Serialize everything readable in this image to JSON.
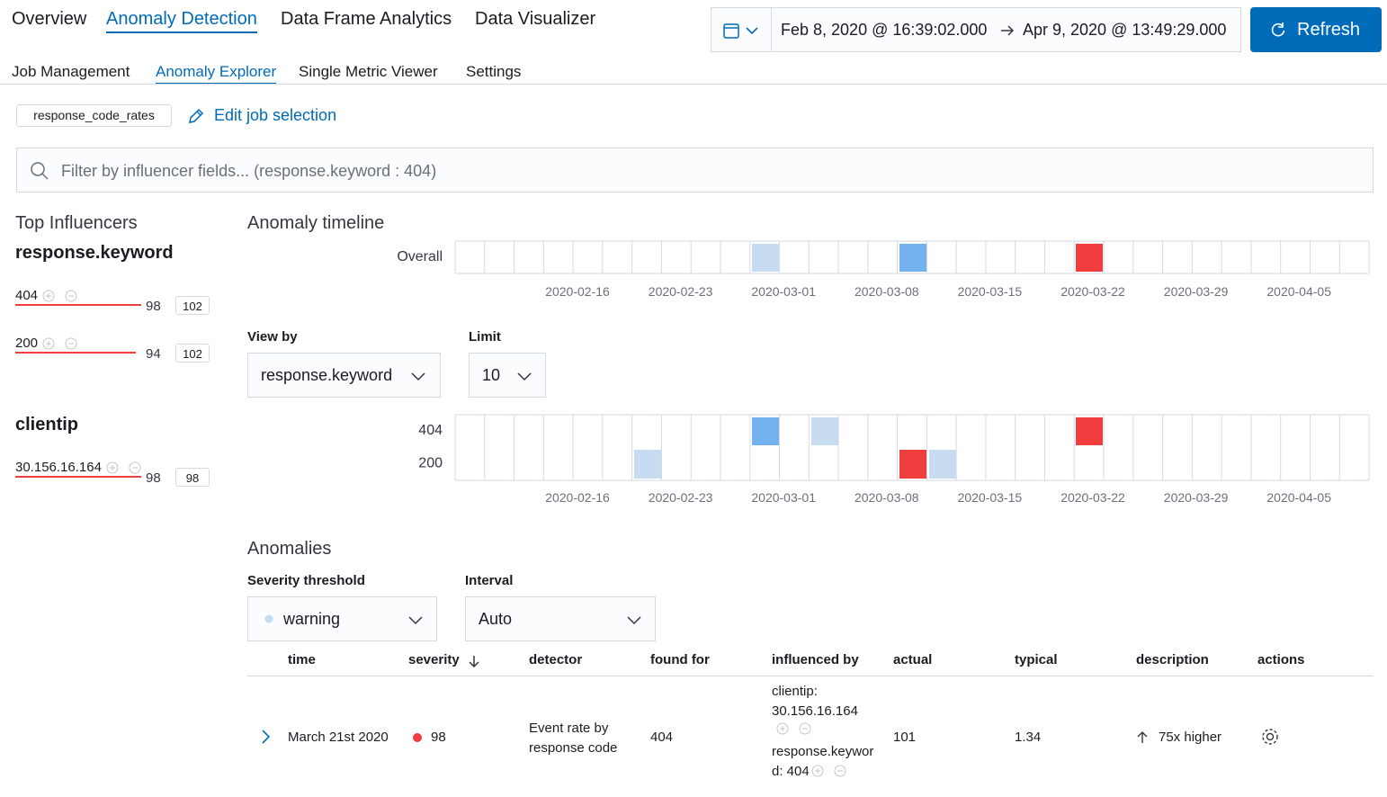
{
  "nav": {
    "tabs": [
      "Overview",
      "Anomaly Detection",
      "Data Frame Analytics",
      "Data Visualizer"
    ],
    "active": 1
  },
  "subnav": {
    "tabs": [
      "Job Management",
      "Anomaly Explorer",
      "Single Metric Viewer",
      "Settings"
    ],
    "active": 1
  },
  "date_picker": {
    "start": "Feb 8, 2020 @ 16:39:02.000",
    "end": "Apr 9, 2020 @ 13:49:29.000"
  },
  "refresh_button": "Refresh",
  "job": {
    "id": "response_code_rates",
    "edit": "Edit job selection"
  },
  "filter": {
    "placeholder": "Filter by influencer fields... (response.keyword : 404)"
  },
  "top_influencers": {
    "title": "Top Influencers",
    "groups": [
      {
        "field": "response.keyword",
        "items": [
          {
            "value": "404",
            "score": 98,
            "total": 102
          },
          {
            "value": "200",
            "score": 94,
            "total": 102
          }
        ]
      },
      {
        "field": "clientip",
        "items": [
          {
            "value": "30.156.16.164",
            "score": 98,
            "total": 98
          }
        ]
      }
    ]
  },
  "timeline": {
    "title": "Anomaly timeline",
    "overall_label": "Overall",
    "dates": [
      "2020-02-16",
      "2020-02-23",
      "2020-03-01",
      "2020-03-08",
      "2020-03-15",
      "2020-03-22",
      "2020-03-29",
      "2020-04-05"
    ],
    "view_by": {
      "label": "View by",
      "value": "response.keyword"
    },
    "limit": {
      "label": "Limit",
      "value": 10
    },
    "rows": [
      "404",
      "200"
    ]
  },
  "anomalies": {
    "title": "Anomalies",
    "severity_threshold": {
      "label": "Severity threshold",
      "value": "warning"
    },
    "interval": {
      "label": "Interval",
      "value": "Auto"
    },
    "table": {
      "columns": [
        "time",
        "severity",
        "detector",
        "found for",
        "influenced by",
        "actual",
        "typical",
        "description",
        "actions"
      ],
      "rows": [
        {
          "time": "March 21st 2020",
          "severity": 98,
          "detector": "Event rate by response code",
          "found_for": "404",
          "influenced_by": [
            "clientip: 30.156.16.164",
            "response.keyword: 404"
          ],
          "actual": 101,
          "typical": 1.34,
          "description": "75x higher"
        }
      ]
    }
  }
}
